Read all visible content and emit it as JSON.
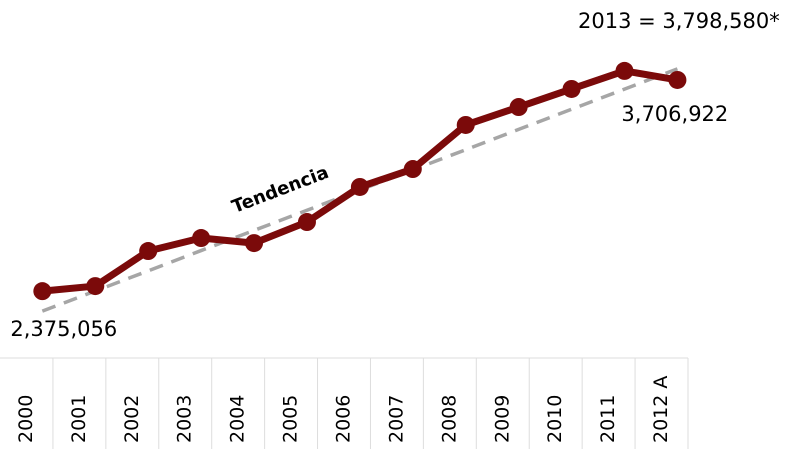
{
  "chart_data": {
    "type": "line",
    "categories": [
      "2000",
      "2001",
      "2002",
      "2003",
      "2004",
      "2005",
      "2006",
      "2007",
      "2008",
      "2009",
      "2010",
      "2011",
      "2012 A"
    ],
    "series": [
      {
        "name": "Tendencia",
        "color": "#a6a6a6",
        "dashed": true,
        "values": [
          2249000,
          2376000,
          2503000,
          2631000,
          2758000,
          2885000,
          3013000,
          3140000,
          3267000,
          3395000,
          3522000,
          3649000,
          3777000
        ]
      },
      {
        "color": "#7b0a0a",
        "values": [
          2375056,
          2407000,
          2628000,
          2710000,
          2678000,
          2811000,
          3032000,
          3145000,
          3423000,
          3536000,
          3650000,
          3764000,
          3706922
        ],
        "value_labels": [
          "2,375,056",
          null,
          null,
          null,
          null,
          null,
          null,
          null,
          null,
          null,
          null,
          null,
          "3,706,922"
        ]
      }
    ],
    "annotation": "2013 = 3,798,580*",
    "ylim": [
      2130000,
      4085000
    ]
  }
}
